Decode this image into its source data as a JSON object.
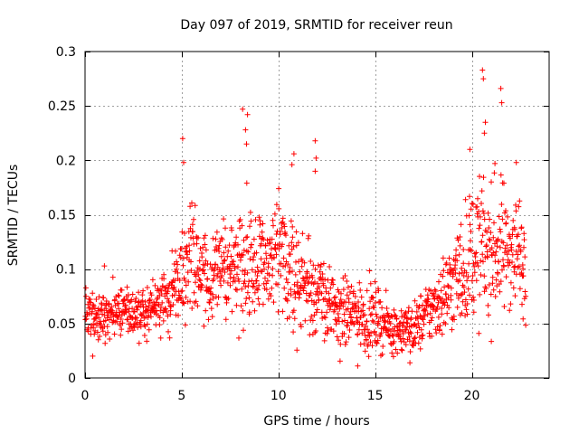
{
  "chart_data": {
    "type": "scatter",
    "title": "Day 097 of 2019, SRMTID for receiver reun",
    "xlabel": "GPS time / hours",
    "ylabel": "SRMTID / TECUs",
    "xlim": [
      0,
      24
    ],
    "ylim": [
      0,
      0.3
    ],
    "x_ticks": [
      0,
      5,
      10,
      15,
      20
    ],
    "y_ticks": [
      0,
      0.05,
      0.1,
      0.15,
      0.2,
      0.25,
      0.3
    ],
    "x_tick_labels": [
      "0",
      "5",
      "10",
      "15",
      "20"
    ],
    "y_tick_labels": [
      "0",
      "0.05",
      "0.1",
      "0.15",
      "0.2",
      "0.25",
      "0.3"
    ],
    "grid": true,
    "marker": "+",
    "color": "#ff0000",
    "series": [
      {
        "name": "SRMTID",
        "profile_x": [
          0,
          0.5,
          1,
          1.5,
          2,
          2.5,
          3,
          3.5,
          4,
          4.5,
          5,
          5.5,
          6,
          6.5,
          7,
          7.5,
          8,
          8.5,
          9,
          9.5,
          10,
          10.5,
          11,
          11.5,
          12,
          12.5,
          13,
          13.5,
          14,
          14.5,
          15,
          15.5,
          16,
          16.5,
          17,
          17.5,
          18,
          18.5,
          19,
          19.5,
          20,
          20.5,
          21,
          21.5,
          22,
          22.5,
          22.8
        ],
        "profile_mean": [
          0.06,
          0.055,
          0.055,
          0.06,
          0.065,
          0.06,
          0.055,
          0.065,
          0.07,
          0.08,
          0.1,
          0.105,
          0.1,
          0.095,
          0.1,
          0.1,
          0.11,
          0.11,
          0.1,
          0.105,
          0.11,
          0.1,
          0.09,
          0.085,
          0.08,
          0.07,
          0.06,
          0.06,
          0.06,
          0.055,
          0.055,
          0.05,
          0.045,
          0.045,
          0.045,
          0.055,
          0.065,
          0.075,
          0.085,
          0.1,
          0.115,
          0.12,
          0.115,
          0.12,
          0.12,
          0.115,
          0.1
        ],
        "profile_spread": [
          0.015,
          0.015,
          0.018,
          0.015,
          0.015,
          0.015,
          0.015,
          0.015,
          0.02,
          0.025,
          0.03,
          0.035,
          0.03,
          0.03,
          0.03,
          0.03,
          0.04,
          0.04,
          0.035,
          0.035,
          0.04,
          0.035,
          0.03,
          0.03,
          0.03,
          0.025,
          0.02,
          0.02,
          0.02,
          0.02,
          0.02,
          0.015,
          0.015,
          0.015,
          0.015,
          0.018,
          0.02,
          0.025,
          0.03,
          0.035,
          0.04,
          0.045,
          0.04,
          0.04,
          0.035,
          0.035,
          0.03
        ],
        "n_points": 1500,
        "peaks": [
          {
            "x": 0.4,
            "y": 0.02
          },
          {
            "x": 1.0,
            "y": 0.103
          },
          {
            "x": 5.05,
            "y": 0.22
          },
          {
            "x": 5.1,
            "y": 0.198
          },
          {
            "x": 8.15,
            "y": 0.247
          },
          {
            "x": 8.4,
            "y": 0.242
          },
          {
            "x": 8.3,
            "y": 0.228
          },
          {
            "x": 8.35,
            "y": 0.215
          },
          {
            "x": 10.8,
            "y": 0.206
          },
          {
            "x": 11.9,
            "y": 0.218
          },
          {
            "x": 11.95,
            "y": 0.202
          },
          {
            "x": 11.9,
            "y": 0.19
          },
          {
            "x": 14.1,
            "y": 0.011
          },
          {
            "x": 16.8,
            "y": 0.014
          },
          {
            "x": 20.55,
            "y": 0.283
          },
          {
            "x": 20.6,
            "y": 0.275
          },
          {
            "x": 21.5,
            "y": 0.266
          },
          {
            "x": 21.55,
            "y": 0.253
          },
          {
            "x": 20.7,
            "y": 0.235
          },
          {
            "x": 20.65,
            "y": 0.225
          },
          {
            "x": 19.9,
            "y": 0.21
          },
          {
            "x": 21.2,
            "y": 0.197
          },
          {
            "x": 22.3,
            "y": 0.198
          },
          {
            "x": 10.7,
            "y": 0.196
          }
        ]
      }
    ]
  }
}
